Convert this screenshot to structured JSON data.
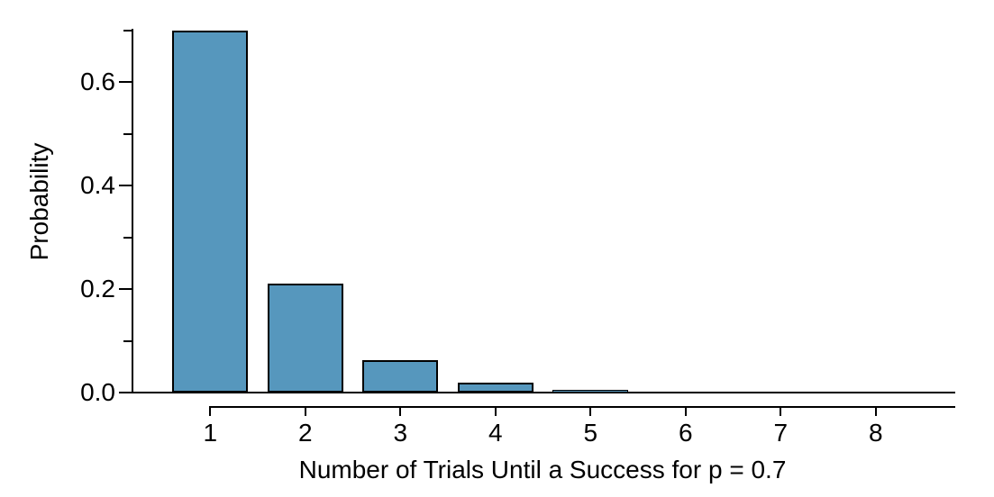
{
  "chart_data": {
    "type": "bar",
    "title": "",
    "xlabel": "Number of Trials Until a Success for p = 0.7",
    "ylabel": "Probability",
    "categories": [
      1,
      2,
      3,
      4,
      5,
      6,
      7,
      8
    ],
    "values": [
      0.7,
      0.21,
      0.063,
      0.0189,
      0.00567,
      0.0017,
      0.00051,
      0.00015
    ],
    "x_tick_labels": [
      "1",
      "2",
      "3",
      "4",
      "5",
      "6",
      "7",
      "8"
    ],
    "y_major_ticks": [
      0.0,
      0.2,
      0.4,
      0.6
    ],
    "y_major_tick_labels": [
      "0.0",
      "0.2",
      "0.4",
      "0.6"
    ],
    "y_minor_ticks": [
      0.1,
      0.3,
      0.5,
      0.7
    ],
    "ylim": [
      0,
      0.7
    ],
    "grid": false,
    "legend_position": "none",
    "colors": {
      "bar_fill": "#5697bd",
      "bar_border": "#000000",
      "axis": "#000000",
      "text": "#000000",
      "background": "#ffffff"
    }
  }
}
